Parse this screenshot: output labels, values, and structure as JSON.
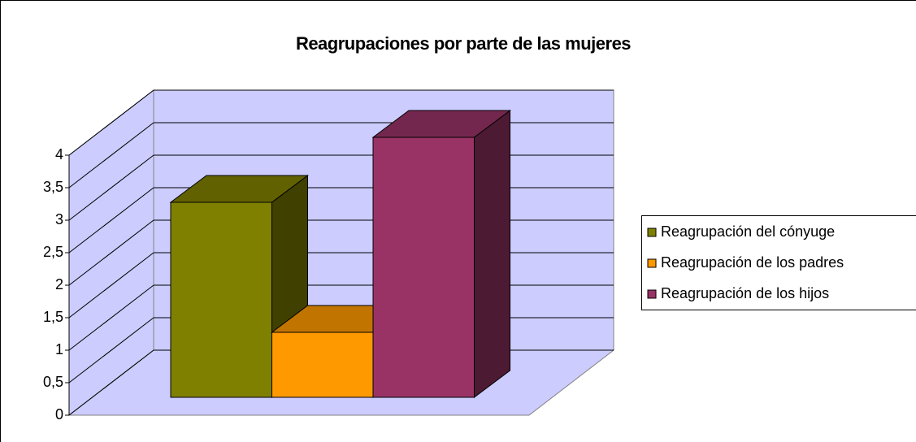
{
  "chart_data": {
    "type": "bar3d",
    "title": "Reagrupaciones por parte de las mujeres",
    "categories": [
      null
    ],
    "series": [
      {
        "name": "Reagrupación del cónyuge",
        "color": "#808000",
        "values": [
          3
        ]
      },
      {
        "name": "Reagrupación de los padres",
        "color": "#ff9900",
        "values": [
          1
        ]
      },
      {
        "name": "Reagrupación de los hijos",
        "color": "#993366",
        "values": [
          4
        ]
      }
    ],
    "ylim": [
      0,
      4
    ],
    "yticks": [
      0,
      {
        "value": 0.5,
        "label": "0,5"
      },
      1,
      {
        "value": 1.5,
        "label": "1,5"
      },
      2,
      {
        "value": 2.5,
        "label": "2,5"
      },
      3,
      {
        "value": 3.5,
        "label": "3,5"
      },
      4
    ],
    "grid": true,
    "legend": "right"
  }
}
